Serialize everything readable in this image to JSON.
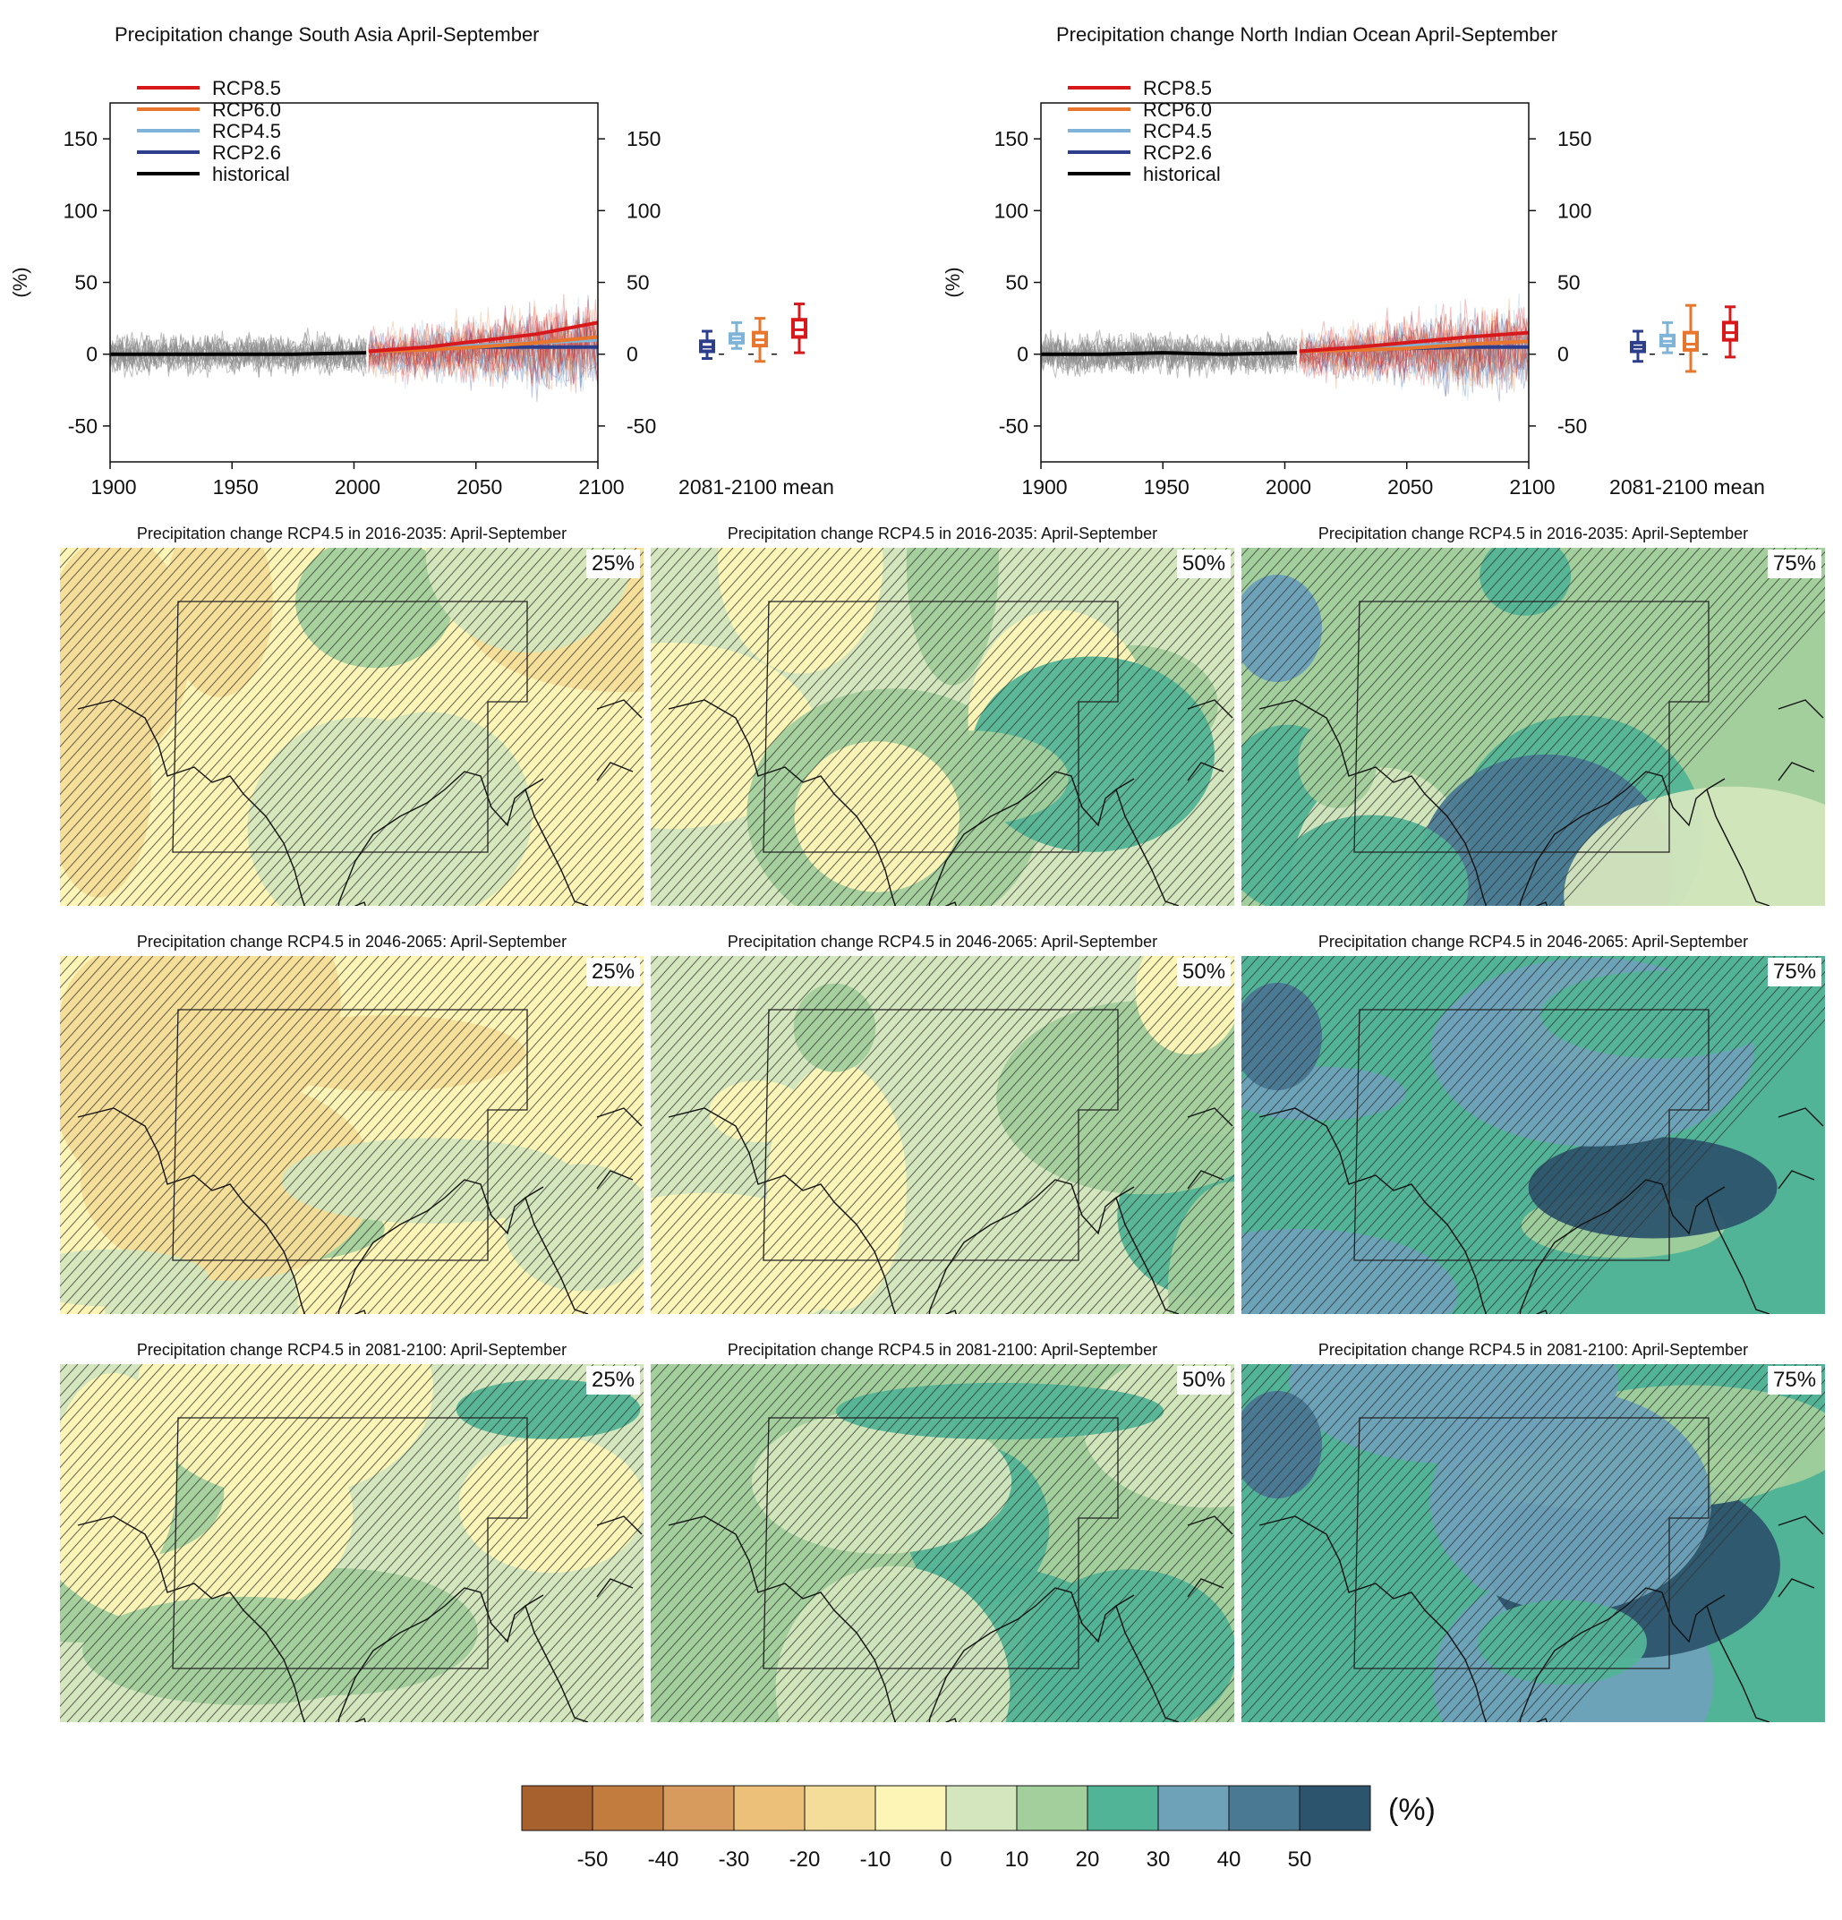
{
  "chart_data": [
    {
      "type": "line",
      "title": "Precipitation change South Asia April-September",
      "ylabel": "(%)",
      "xlim": [
        1900,
        2100
      ],
      "ylim": [
        -75,
        175
      ],
      "xticks": [
        "1900",
        "1950",
        "2000",
        "2050",
        "2100"
      ],
      "yticks": [
        "150",
        "100",
        "50",
        "0",
        "-50"
      ],
      "legend": [
        "RCP8.5",
        "RCP6.0",
        "RCP4.5",
        "RCP2.6",
        "historical"
      ],
      "legend_position": "top-left",
      "series_colors": [
        "#d7191c",
        "#e8762d",
        "#7fb3d8",
        "#2c3e8c",
        "#000000"
      ],
      "series": [
        {
          "name": "historical",
          "x": [
            1900,
            1925,
            1950,
            1975,
            2005
          ],
          "values": [
            0,
            0,
            0,
            0,
            1
          ]
        },
        {
          "name": "RCP2.6",
          "x": [
            2006,
            2030,
            2050,
            2075,
            2100
          ],
          "values": [
            2,
            4,
            5,
            5,
            5
          ]
        },
        {
          "name": "RCP4.5",
          "x": [
            2006,
            2030,
            2050,
            2075,
            2100
          ],
          "values": [
            2,
            4,
            6,
            8,
            10
          ]
        },
        {
          "name": "RCP6.0",
          "x": [
            2006,
            2030,
            2050,
            2075,
            2100
          ],
          "values": [
            2,
            3,
            5,
            8,
            12
          ]
        },
        {
          "name": "RCP8.5",
          "x": [
            2006,
            2030,
            2050,
            2075,
            2100
          ],
          "values": [
            2,
            5,
            9,
            14,
            22
          ]
        }
      ],
      "box_label": "2081-2100 mean",
      "boxes": [
        {
          "name": "RCP2.6",
          "min": -3,
          "q1": 2,
          "median": 5,
          "q3": 9,
          "max": 16
        },
        {
          "name": "RCP4.5",
          "min": 4,
          "q1": 8,
          "median": 11,
          "q3": 14,
          "max": 22
        },
        {
          "name": "RCP6.0",
          "min": -5,
          "q1": 6,
          "median": 10,
          "q3": 15,
          "max": 25
        },
        {
          "name": "RCP8.5",
          "min": 1,
          "q1": 12,
          "median": 17,
          "q3": 24,
          "max": 35
        }
      ]
    },
    {
      "type": "line",
      "title": "Precipitation change North Indian Ocean April-September",
      "ylabel": "(%)",
      "xlim": [
        1900,
        2100
      ],
      "ylim": [
        -75,
        175
      ],
      "xticks": [
        "1900",
        "1950",
        "2000",
        "2050",
        "2100"
      ],
      "yticks": [
        "150",
        "100",
        "50",
        "0",
        "-50"
      ],
      "legend": [
        "RCP8.5",
        "RCP6.0",
        "RCP4.5",
        "RCP2.6",
        "historical"
      ],
      "legend_position": "top-left",
      "series_colors": [
        "#d7191c",
        "#e8762d",
        "#7fb3d8",
        "#2c3e8c",
        "#000000"
      ],
      "series": [
        {
          "name": "historical",
          "x": [
            1900,
            1925,
            1950,
            1975,
            2005
          ],
          "values": [
            0,
            0,
            1,
            0,
            1
          ]
        },
        {
          "name": "RCP2.6",
          "x": [
            2006,
            2030,
            2050,
            2075,
            2100
          ],
          "values": [
            2,
            4,
            4,
            5,
            5
          ]
        },
        {
          "name": "RCP4.5",
          "x": [
            2006,
            2030,
            2050,
            2075,
            2100
          ],
          "values": [
            2,
            4,
            6,
            7,
            9
          ]
        },
        {
          "name": "RCP6.0",
          "x": [
            2006,
            2030,
            2050,
            2075,
            2100
          ],
          "values": [
            2,
            3,
            4,
            7,
            9
          ]
        },
        {
          "name": "RCP8.5",
          "x": [
            2006,
            2030,
            2050,
            2075,
            2100
          ],
          "values": [
            2,
            5,
            8,
            12,
            15
          ]
        }
      ],
      "box_label": "2081-2100 mean",
      "boxes": [
        {
          "name": "RCP2.6",
          "min": -5,
          "q1": 2,
          "median": 5,
          "q3": 8,
          "max": 16
        },
        {
          "name": "RCP4.5",
          "min": 1,
          "q1": 6,
          "median": 9,
          "q3": 13,
          "max": 22
        },
        {
          "name": "RCP6.0",
          "min": -12,
          "q1": 3,
          "median": 7,
          "q3": 15,
          "max": 34
        },
        {
          "name": "RCP8.5",
          "min": -2,
          "q1": 10,
          "median": 15,
          "q3": 22,
          "max": 33
        }
      ]
    },
    {
      "type": "heatmap",
      "panels": [
        {
          "title": "Precipitation change RCP4.5 in 2016-2035: April-September",
          "percentile": "25%",
          "dominant_level": -5
        },
        {
          "title": "Precipitation change RCP4.5 in 2016-2035: April-September",
          "percentile": "50%",
          "dominant_level": 5
        },
        {
          "title": "Precipitation change RCP4.5 in 2016-2035: April-September",
          "percentile": "75%",
          "dominant_level": 10
        },
        {
          "title": "Precipitation change RCP4.5 in 2046-2065: April-September",
          "percentile": "25%",
          "dominant_level": -5
        },
        {
          "title": "Precipitation change RCP4.5 in 2046-2065: April-September",
          "percentile": "50%",
          "dominant_level": 5
        },
        {
          "title": "Precipitation change RCP4.5 in 2046-2065: April-September",
          "percentile": "75%",
          "dominant_level": 20
        },
        {
          "title": "Precipitation change RCP4.5 in 2081-2100: April-September",
          "percentile": "25%",
          "dominant_level": 0
        },
        {
          "title": "Precipitation change RCP4.5 in 2081-2100: April-September",
          "percentile": "50%",
          "dominant_level": 10
        },
        {
          "title": "Precipitation change RCP4.5 in 2081-2100: April-September",
          "percentile": "75%",
          "dominant_level": 20
        }
      ],
      "colorbar": {
        "unit": "(%)",
        "ticks": [
          "-50",
          "-40",
          "-30",
          "-20",
          "-10",
          "0",
          "10",
          "20",
          "30",
          "40",
          "50"
        ],
        "colors": [
          "#a7612f",
          "#c17c3e",
          "#d69b5d",
          "#ecc078",
          "#f4dd98",
          "#fdf5b6",
          "#d4e6bd",
          "#a2cf9c",
          "#52b496",
          "#6ea2b9",
          "#4a7994",
          "#2d546d"
        ]
      }
    }
  ]
}
